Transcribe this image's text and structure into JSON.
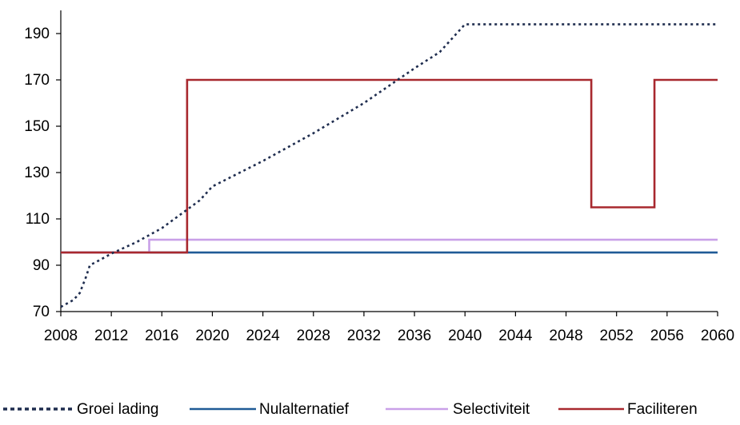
{
  "chart_data": {
    "type": "line",
    "title": "",
    "xlabel": "",
    "ylabel": "",
    "xlim": [
      2008,
      2060
    ],
    "ylim": [
      70,
      200
    ],
    "x_ticks": [
      2008,
      2012,
      2016,
      2020,
      2024,
      2028,
      2032,
      2036,
      2040,
      2044,
      2048,
      2052,
      2056,
      2060
    ],
    "y_ticks": [
      70,
      90,
      110,
      130,
      150,
      170,
      190
    ],
    "grid": false,
    "legend_position": "bottom",
    "series": [
      {
        "name": "Groei lading",
        "color": "#1f2d4f",
        "style": "dotted",
        "step": false,
        "points": [
          [
            2008,
            72
          ],
          [
            2009,
            75
          ],
          [
            2009.5,
            78
          ],
          [
            2010,
            85
          ],
          [
            2010.3,
            90
          ],
          [
            2011,
            92
          ],
          [
            2012,
            95
          ],
          [
            2014,
            100
          ],
          [
            2016,
            106
          ],
          [
            2018,
            114
          ],
          [
            2019,
            118
          ],
          [
            2020,
            124
          ],
          [
            2024,
            135
          ],
          [
            2028,
            147
          ],
          [
            2032,
            160
          ],
          [
            2036,
            175
          ],
          [
            2038,
            182
          ],
          [
            2040,
            194
          ],
          [
            2044,
            194
          ],
          [
            2048,
            194
          ],
          [
            2052,
            194
          ],
          [
            2056,
            194
          ],
          [
            2060,
            194
          ]
        ]
      },
      {
        "name": "Nulalternatief",
        "color": "#1f5a96",
        "style": "solid",
        "step": true,
        "points": [
          [
            2008,
            95.5
          ],
          [
            2060,
            95.5
          ]
        ]
      },
      {
        "name": "Selectiviteit",
        "color": "#c9a0e8",
        "style": "solid",
        "step": true,
        "points": [
          [
            2008,
            95.5
          ],
          [
            2015,
            95.5
          ],
          [
            2015,
            101
          ],
          [
            2060,
            101
          ]
        ]
      },
      {
        "name": "Faciliteren",
        "color": "#a8282e",
        "style": "solid",
        "step": true,
        "points": [
          [
            2008,
            95.5
          ],
          [
            2018,
            95.5
          ],
          [
            2018,
            170
          ],
          [
            2050,
            170
          ],
          [
            2050,
            115
          ],
          [
            2055,
            115
          ],
          [
            2055,
            170
          ],
          [
            2060,
            170
          ]
        ]
      }
    ]
  }
}
